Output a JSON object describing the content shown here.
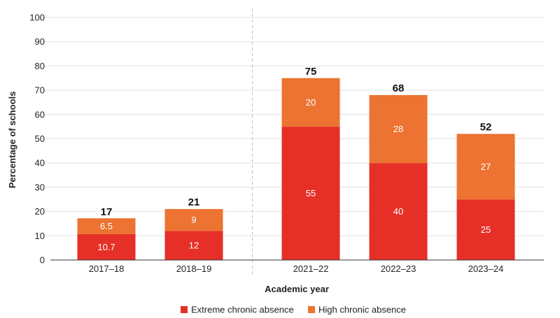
{
  "chart_data": {
    "type": "bar",
    "stacked": true,
    "categories": [
      "2017–18",
      "2018–19",
      "2021–22",
      "2022–23",
      "2023–24"
    ],
    "gap_after_category_index": 1,
    "series": [
      {
        "name": "Extreme chronic absence",
        "color": "#e63027",
        "values": [
          10.7,
          12,
          55,
          40,
          25
        ],
        "labels": [
          "10.7",
          "12",
          "55",
          "40",
          "25"
        ]
      },
      {
        "name": "High chronic absence",
        "color": "#ec7331",
        "values": [
          6.5,
          9,
          20,
          28,
          27
        ],
        "labels": [
          "6.5",
          "9",
          "20",
          "28",
          "27"
        ]
      }
    ],
    "totals": [
      17,
      21,
      75,
      68,
      52
    ],
    "total_labels": [
      "17",
      "21",
      "75",
      "68",
      "52"
    ],
    "xlabel": "Academic year",
    "ylabel": "Percentage of schools",
    "ylim": [
      0,
      100
    ],
    "yticks": [
      0,
      10,
      20,
      30,
      40,
      50,
      60,
      70,
      80,
      90,
      100
    ],
    "ytick_labels": [
      "0",
      "10",
      "20",
      "30",
      "40",
      "50",
      "60",
      "70",
      "80",
      "90",
      "100"
    ],
    "grid": true,
    "legend_position": "bottom-center"
  }
}
